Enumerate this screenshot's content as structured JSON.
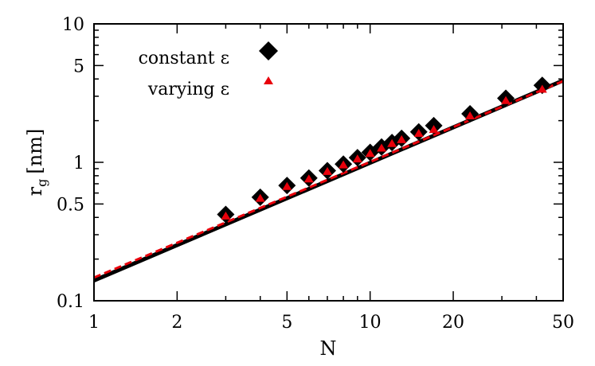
{
  "chart_data": {
    "type": "scatter",
    "xscale": "log",
    "yscale": "log",
    "xlim": [
      1,
      50
    ],
    "ylim": [
      0.1,
      10
    ],
    "xlabel": "N",
    "ylabel_main": "r",
    "ylabel_sub": "g",
    "ylabel_unit": "[nm]",
    "x_ticks": [
      "1",
      "2",
      "5",
      "10",
      "20",
      "50"
    ],
    "x_tick_values": [
      1,
      2,
      5,
      10,
      20,
      50
    ],
    "y_ticks": [
      "0.1",
      "0.5",
      "1",
      "5",
      "10"
    ],
    "y_tick_values": [
      0.1,
      0.5,
      1,
      5,
      10
    ],
    "legend_position": "top-left",
    "grid": false,
    "series": [
      {
        "name": "constant ε",
        "marker": "diamond",
        "color": "#000000",
        "x": [
          3,
          4,
          5,
          6,
          7,
          8,
          9,
          10,
          11,
          12,
          13,
          15,
          17,
          23,
          31,
          42
        ],
        "y": [
          0.42,
          0.56,
          0.68,
          0.77,
          0.87,
          0.97,
          1.08,
          1.18,
          1.29,
          1.39,
          1.49,
          1.66,
          1.84,
          2.24,
          2.9,
          3.6
        ]
      },
      {
        "name": "varying ε",
        "marker": "triangle",
        "color": "#e8000b",
        "x": [
          3,
          4,
          5,
          6,
          7,
          8,
          9,
          10,
          11,
          12,
          13,
          15,
          17,
          23,
          31,
          42
        ],
        "y": [
          0.41,
          0.55,
          0.67,
          0.76,
          0.86,
          0.96,
          1.06,
          1.16,
          1.27,
          1.37,
          1.46,
          1.62,
          1.73,
          2.17,
          2.8,
          3.38
        ]
      }
    ],
    "fit_lines": [
      {
        "color": "#000000",
        "style": "solid",
        "x": [
          1,
          50
        ],
        "y": [
          0.14,
          3.9
        ]
      },
      {
        "color": "#e8000b",
        "style": "dashed",
        "x": [
          1,
          50
        ],
        "y": [
          0.147,
          3.86
        ]
      }
    ]
  }
}
